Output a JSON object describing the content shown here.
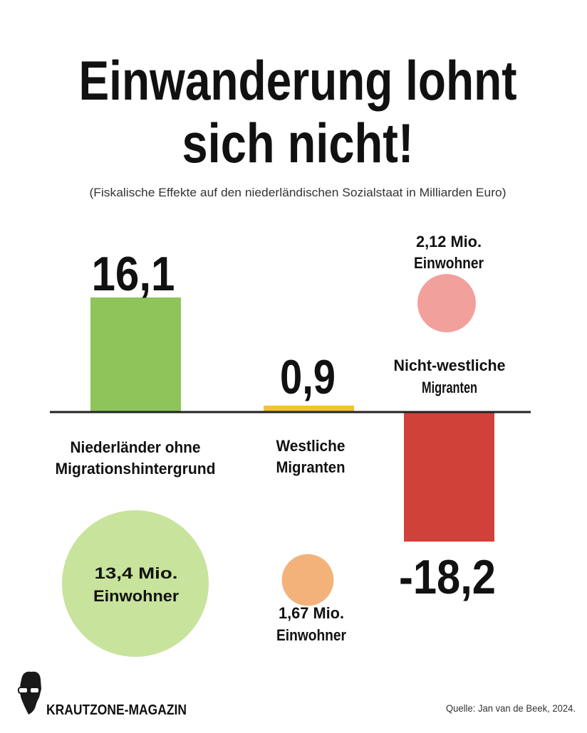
{
  "chart_data": {
    "type": "bar",
    "title": "Einwanderung lohnt sich nicht!",
    "title_lines": [
      "Einwanderung lohnt",
      "sich nicht!"
    ],
    "subtitle": "(Fiskalische Effekte auf den niederländischen Sozialstaat in Milliarden Euro)",
    "unit": "Milliarden Euro",
    "categories": [
      {
        "label_lines": [
          "Niederländer ohne",
          "Migrationshintergrund"
        ],
        "value": 16.1,
        "value_label": "16,1",
        "color": "#8fc45a",
        "population": 13.4,
        "population_lines": [
          "13,4 Mio.",
          "Einwohner"
        ],
        "circle_color": "#c8e39b"
      },
      {
        "label_lines": [
          "Westliche",
          "Migranten"
        ],
        "value": 0.9,
        "value_label": "0,9",
        "color": "#f2c230",
        "population": 1.67,
        "population_lines": [
          "1,67 Mio.",
          "Einwohner"
        ],
        "circle_color": "#f3b27a"
      },
      {
        "label_lines": [
          "Nicht-westliche",
          "Migranten"
        ],
        "value": -18.2,
        "value_label": "-18,2",
        "color": "#d0413a",
        "population": 2.12,
        "population_lines": [
          "2,12 Mio.",
          "Einwohner"
        ],
        "circle_color": "#f2a09c"
      }
    ]
  },
  "footer": {
    "brand": "KRAUTZONE-MAGAZIN",
    "source": "Quelle: Jan van de Beek, 2024."
  }
}
